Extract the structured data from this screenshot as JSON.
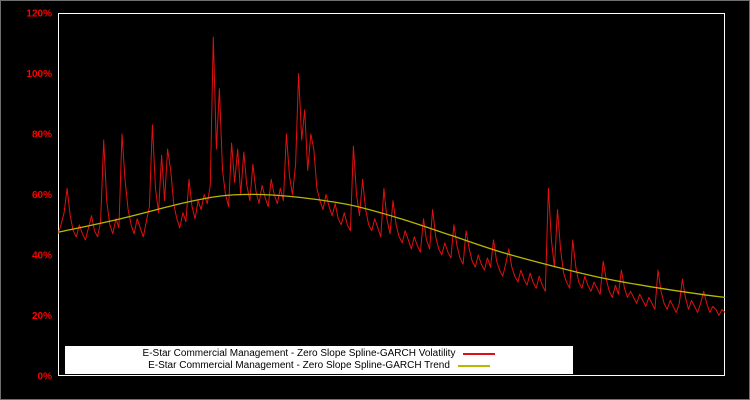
{
  "colors": {
    "background": "#000000",
    "axis_label": "#ff0000",
    "plot_border": "#ffffff",
    "volatility_line": "#e01010",
    "trend_line": "#b8b800",
    "legend_background": "#ffffff",
    "legend_text": "#000000"
  },
  "legend": {
    "items": [
      {
        "label": "E-Star Commercial Management - Zero Slope Spline-GARCH Volatility"
      },
      {
        "label": "E-Star Commercial Management - Zero Slope Spline-GARCH Trend"
      }
    ]
  },
  "chart_data": {
    "type": "line",
    "title": "",
    "xlabel": "",
    "ylabel": "",
    "ylim": [
      0,
      120
    ],
    "grid": false,
    "legend_position": "bottom-center",
    "y_tick_labels": [
      "0%",
      "20%",
      "40%",
      "60%",
      "80%",
      "100%",
      "120%"
    ],
    "y_tick_values": [
      0,
      20,
      40,
      60,
      80,
      100,
      120
    ],
    "series": [
      {
        "name": "E-Star Commercial Management - Zero Slope Spline-GARCH Volatility",
        "color": "#e01010",
        "unit": "percent",
        "values": [
          47,
          50,
          54,
          62,
          53,
          48,
          46,
          50,
          47,
          45,
          49,
          53,
          48,
          46,
          51,
          78,
          58,
          50,
          47,
          52,
          49,
          80,
          65,
          55,
          50,
          47,
          52,
          49,
          46,
          51,
          56,
          83,
          62,
          54,
          73,
          58,
          75,
          68,
          57,
          52,
          49,
          54,
          51,
          65,
          56,
          52,
          58,
          55,
          60,
          57,
          63,
          112,
          75,
          95,
          68,
          60,
          56,
          77,
          64,
          75,
          60,
          74,
          63,
          58,
          70,
          61,
          57,
          63,
          59,
          56,
          65,
          60,
          57,
          62,
          58,
          80,
          66,
          60,
          70,
          100,
          78,
          88,
          68,
          80,
          75,
          62,
          58,
          55,
          60,
          56,
          53,
          57,
          52,
          50,
          54,
          50,
          48,
          76,
          60,
          53,
          65,
          55,
          50,
          48,
          52,
          49,
          46,
          62,
          52,
          47,
          58,
          50,
          46,
          44,
          48,
          45,
          42,
          46,
          43,
          41,
          52,
          45,
          42,
          55,
          46,
          42,
          40,
          44,
          41,
          39,
          50,
          43,
          39,
          37,
          48,
          42,
          38,
          36,
          40,
          37,
          35,
          39,
          36,
          45,
          38,
          35,
          33,
          37,
          42,
          36,
          33,
          31,
          35,
          32,
          30,
          34,
          31,
          29,
          33,
          30,
          28,
          62,
          45,
          36,
          55,
          42,
          34,
          31,
          29,
          45,
          36,
          31,
          29,
          33,
          30,
          28,
          31,
          29,
          27,
          38,
          32,
          28,
          26,
          30,
          27,
          35,
          29,
          26,
          28,
          26,
          24,
          27,
          25,
          23,
          26,
          24,
          22,
          35,
          28,
          24,
          22,
          25,
          23,
          21,
          24,
          32,
          26,
          22,
          25,
          23,
          21,
          24,
          28,
          24,
          21,
          23,
          22,
          20,
          22,
          21
        ]
      },
      {
        "name": "E-Star Commercial Management - Zero Slope Spline-GARCH Trend",
        "color": "#b8b800",
        "unit": "percent",
        "smooth": true,
        "x": [
          0,
          0.094,
          0.184,
          0.244,
          0.304,
          0.364,
          0.439,
          0.514,
          0.589,
          0.664,
          0.739,
          0.814,
          0.889,
          0.964,
          1.0
        ],
        "values": [
          47.5,
          52.0,
          57.0,
          59.5,
          60.0,
          59.0,
          56.5,
          52.0,
          46.5,
          41.0,
          36.5,
          32.5,
          29.5,
          27.0,
          26.0
        ]
      }
    ]
  }
}
